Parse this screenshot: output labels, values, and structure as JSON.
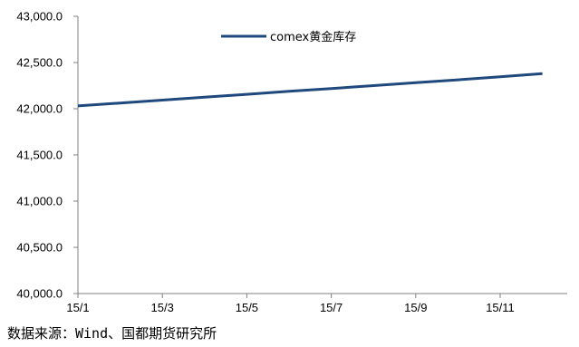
{
  "chart_data": {
    "type": "line",
    "title": "",
    "xlabel": "",
    "ylabel": "",
    "x": [
      "15/1",
      "15/2",
      "15/3",
      "15/4",
      "15/5",
      "15/6",
      "15/7",
      "15/8",
      "15/9",
      "15/10",
      "15/11",
      "15/12"
    ],
    "x_ticks": [
      "15/1",
      "15/3",
      "15/5",
      "15/7",
      "15/9",
      "15/11"
    ],
    "y_ticks": [
      "40,000.0",
      "40,500.0",
      "41,000.0",
      "41,500.0",
      "42,000.0",
      "42,500.0",
      "43,000.0"
    ],
    "ylim": [
      40000,
      43000
    ],
    "grid": false,
    "legend": "top-center",
    "series": [
      {
        "name": "comex黄金库存",
        "color": "#1f497d",
        "values": [
          42030,
          42062,
          42093,
          42125,
          42156,
          42188,
          42219,
          42250,
          42282,
          42313,
          42345,
          42380
        ]
      }
    ]
  },
  "source": "数据来源：Wind、国都期货研究所"
}
